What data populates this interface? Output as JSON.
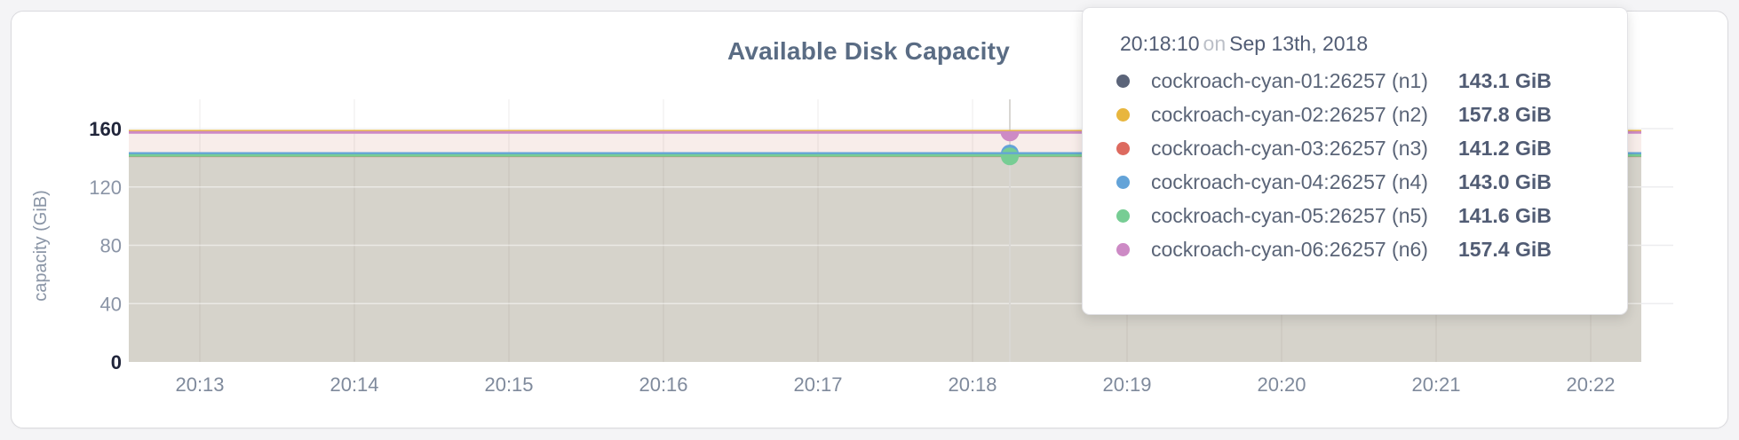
{
  "chart_data": {
    "type": "area",
    "title": "Available Disk Capacity",
    "xlabel": "",
    "ylabel": "capacity (GiB)",
    "ylim": [
      0,
      160
    ],
    "yticks": [
      0,
      40,
      80,
      120,
      160
    ],
    "ytick_emphasized": [
      0,
      160
    ],
    "xticks": [
      "20:13",
      "20:14",
      "20:15",
      "20:16",
      "20:17",
      "20:18",
      "20:19",
      "20:20",
      "20:21",
      "20:22"
    ],
    "grid": true,
    "legend_position": "tooltip-overlay",
    "series_shape": "flat-horizontal-lines",
    "series": [
      {
        "name": "cockroach-cyan-01:26257 (n1)",
        "value_gib": 143.1,
        "color": "#5b6479"
      },
      {
        "name": "cockroach-cyan-02:26257 (n2)",
        "value_gib": 157.8,
        "color": "#e8b63e"
      },
      {
        "name": "cockroach-cyan-03:26257 (n3)",
        "value_gib": 141.2,
        "color": "#dd6a5f"
      },
      {
        "name": "cockroach-cyan-04:26257 (n4)",
        "value_gib": 143.0,
        "color": "#63a3d8"
      },
      {
        "name": "cockroach-cyan-05:26257 (n5)",
        "value_gib": 141.6,
        "color": "#77cd94"
      },
      {
        "name": "cockroach-cyan-06:26257 (n6)",
        "value_gib": 157.4,
        "color": "#cd8ac5"
      }
    ],
    "fill_bands": [
      {
        "from_gib": 157.4,
        "color": "#f8edea"
      },
      {
        "from_gib": 143.0,
        "color": "#d6d3cb"
      }
    ],
    "hover": {
      "time": "20:18:10",
      "between_ticks": [
        "20:18",
        "20:19"
      ],
      "marker_series_indexes": [
        3,
        4,
        5
      ],
      "guideline_color": "#d9d7d3"
    }
  },
  "tooltip": {
    "time": "20:18:10",
    "conj": "on",
    "date": "Sep 13th, 2018",
    "rows": [
      {
        "name": "cockroach-cyan-01:26257 (n1)",
        "value": "143.1 GiB",
        "color": "#5b6479"
      },
      {
        "name": "cockroach-cyan-02:26257 (n2)",
        "value": "157.8 GiB",
        "color": "#e8b63e"
      },
      {
        "name": "cockroach-cyan-03:26257 (n3)",
        "value": "141.2 GiB",
        "color": "#dd6a5f"
      },
      {
        "name": "cockroach-cyan-04:26257 (n4)",
        "value": "143.0 GiB",
        "color": "#63a3d8"
      },
      {
        "name": "cockroach-cyan-05:26257 (n5)",
        "value": "141.6 GiB",
        "color": "#77cd94"
      },
      {
        "name": "cockroach-cyan-06:26257 (n6)",
        "value": "157.4 GiB",
        "color": "#cd8ac5"
      }
    ]
  },
  "colors": {
    "page_background": "#f4f4f6",
    "card_background": "#ffffff",
    "title_text": "#5a6c84",
    "tick_text": "#7f8a9c",
    "tick_text_emphasized": "#20253a",
    "axis_label_text": "#8a95a6"
  }
}
